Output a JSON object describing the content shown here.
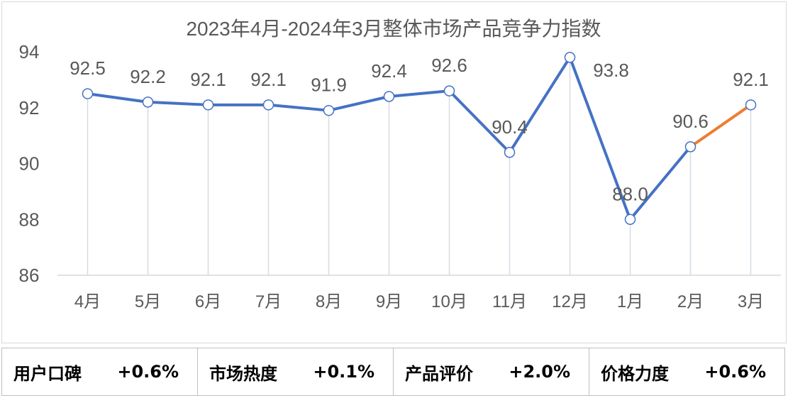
{
  "chart_data": {
    "type": "line",
    "title": "2023年4月-2024年3月整体市场产品竞争力指数",
    "categories": [
      "4月",
      "5月",
      "6月",
      "7月",
      "8月",
      "9月",
      "10月",
      "11月",
      "12月",
      "1月",
      "2月",
      "3月"
    ],
    "series": [
      {
        "values": [
          92.5,
          92.2,
          92.1,
          92.1,
          91.9,
          92.4,
          92.6,
          90.4,
          93.8,
          88.0,
          90.6,
          92.1
        ]
      }
    ],
    "data_labels": [
      "92.5",
      "92.2",
      "92.1",
      "92.1",
      "91.9",
      "92.4",
      "92.6",
      "90.4",
      "93.8",
      "88.0",
      "90.6",
      "92.1"
    ],
    "y_ticks": [
      86,
      88,
      90,
      92,
      94
    ],
    "ylim": [
      86,
      94
    ],
    "grid": false,
    "colors": {
      "line": "#4472C4",
      "highlight": "#ED7D31",
      "drop_line": "#D6DCE5",
      "text": "#595959"
    }
  },
  "stats": [
    {
      "label": "用户口碑",
      "value": "+0.6%"
    },
    {
      "label": "市场热度",
      "value": "+0.1%"
    },
    {
      "label": "产品评价",
      "value": "+2.0%"
    },
    {
      "label": "价格力度",
      "value": "+0.6%"
    }
  ]
}
